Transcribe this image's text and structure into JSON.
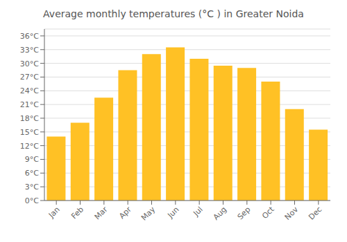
{
  "chart_data": {
    "type": "bar",
    "title": "Average monthly temperatures (°C ) in Greater Noida",
    "categories": [
      "Jan",
      "Feb",
      "Mar",
      "Apr",
      "May",
      "Jun",
      "Jul",
      "Aug",
      "Sep",
      "Oct",
      "Nov",
      "Dec"
    ],
    "values": [
      14.0,
      17.0,
      22.5,
      28.5,
      32.0,
      33.5,
      31.0,
      29.5,
      29.0,
      26.0,
      20.0,
      15.5
    ],
    "color": "#FFC125",
    "ylim": [
      0,
      37.5
    ],
    "yticks": [
      {
        "value": 0,
        "label": "0°C"
      },
      {
        "value": 3,
        "label": "3°C"
      },
      {
        "value": 6,
        "label": "6°C"
      },
      {
        "value": 9,
        "label": "9°C"
      },
      {
        "value": 12,
        "label": "12°C"
      },
      {
        "value": 15,
        "label": "15°C"
      },
      {
        "value": 18,
        "label": "18°C"
      },
      {
        "value": 21,
        "label": "21°C"
      },
      {
        "value": 24,
        "label": "24°C"
      },
      {
        "value": 27,
        "label": "27°C"
      },
      {
        "value": 30,
        "label": "30°C"
      },
      {
        "value": 33,
        "label": "33°C"
      },
      {
        "value": 36,
        "label": "36°C"
      }
    ],
    "grid": true
  }
}
